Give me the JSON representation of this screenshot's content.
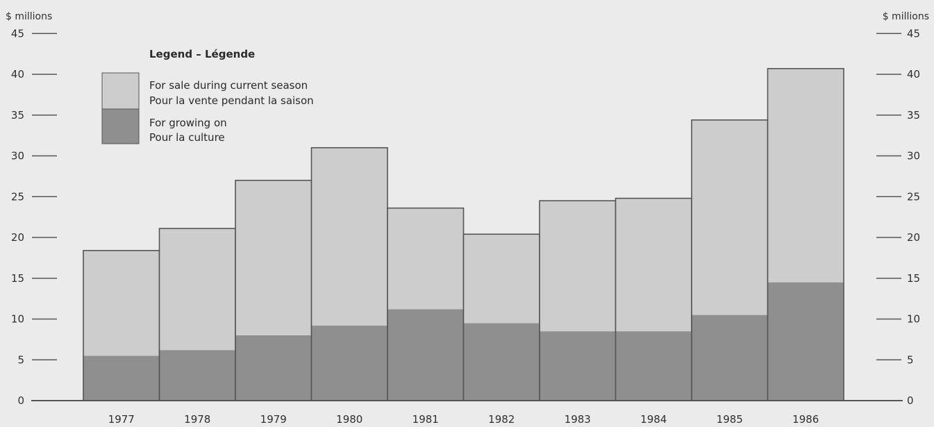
{
  "chart_data": {
    "type": "bar",
    "stacked": true,
    "y_unit_label": "$ millions",
    "categories": [
      "1977",
      "1978",
      "1979",
      "1980",
      "1981",
      "1982",
      "1983",
      "1984",
      "1985",
      "1986"
    ],
    "series": [
      {
        "name_en": "For growing on",
        "name_fr": "Pour la culture",
        "values": [
          5.5,
          6.2,
          8.0,
          9.2,
          11.2,
          9.5,
          8.5,
          8.5,
          10.5,
          14.5
        ]
      },
      {
        "name_en": "For sale during current season",
        "name_fr": "Pour la vente pendant la saison",
        "values": [
          12.9,
          14.9,
          19.0,
          21.8,
          12.4,
          10.9,
          16.0,
          16.3,
          23.9,
          26.2
        ]
      }
    ],
    "totals": [
      18.4,
      21.1,
      27.0,
      31.0,
      23.6,
      20.4,
      24.5,
      24.8,
      34.4,
      40.7
    ],
    "ylim": [
      0,
      45
    ],
    "yticks": [
      0,
      5,
      10,
      15,
      20,
      25,
      30,
      35,
      40,
      45
    ],
    "ytick_labels": [
      "0",
      "5",
      "10",
      "15",
      "20",
      "25",
      "30",
      "35",
      "40",
      "45"
    ],
    "legend_title": "Legend – Légende",
    "legend_position": "top-left",
    "grid": false
  },
  "colors": {
    "background": "#ebebeb",
    "upper_segment": "#cdcdcd",
    "lower_segment": "#8f8f8f",
    "outline": "#555555",
    "text": "#2a2a2a"
  }
}
